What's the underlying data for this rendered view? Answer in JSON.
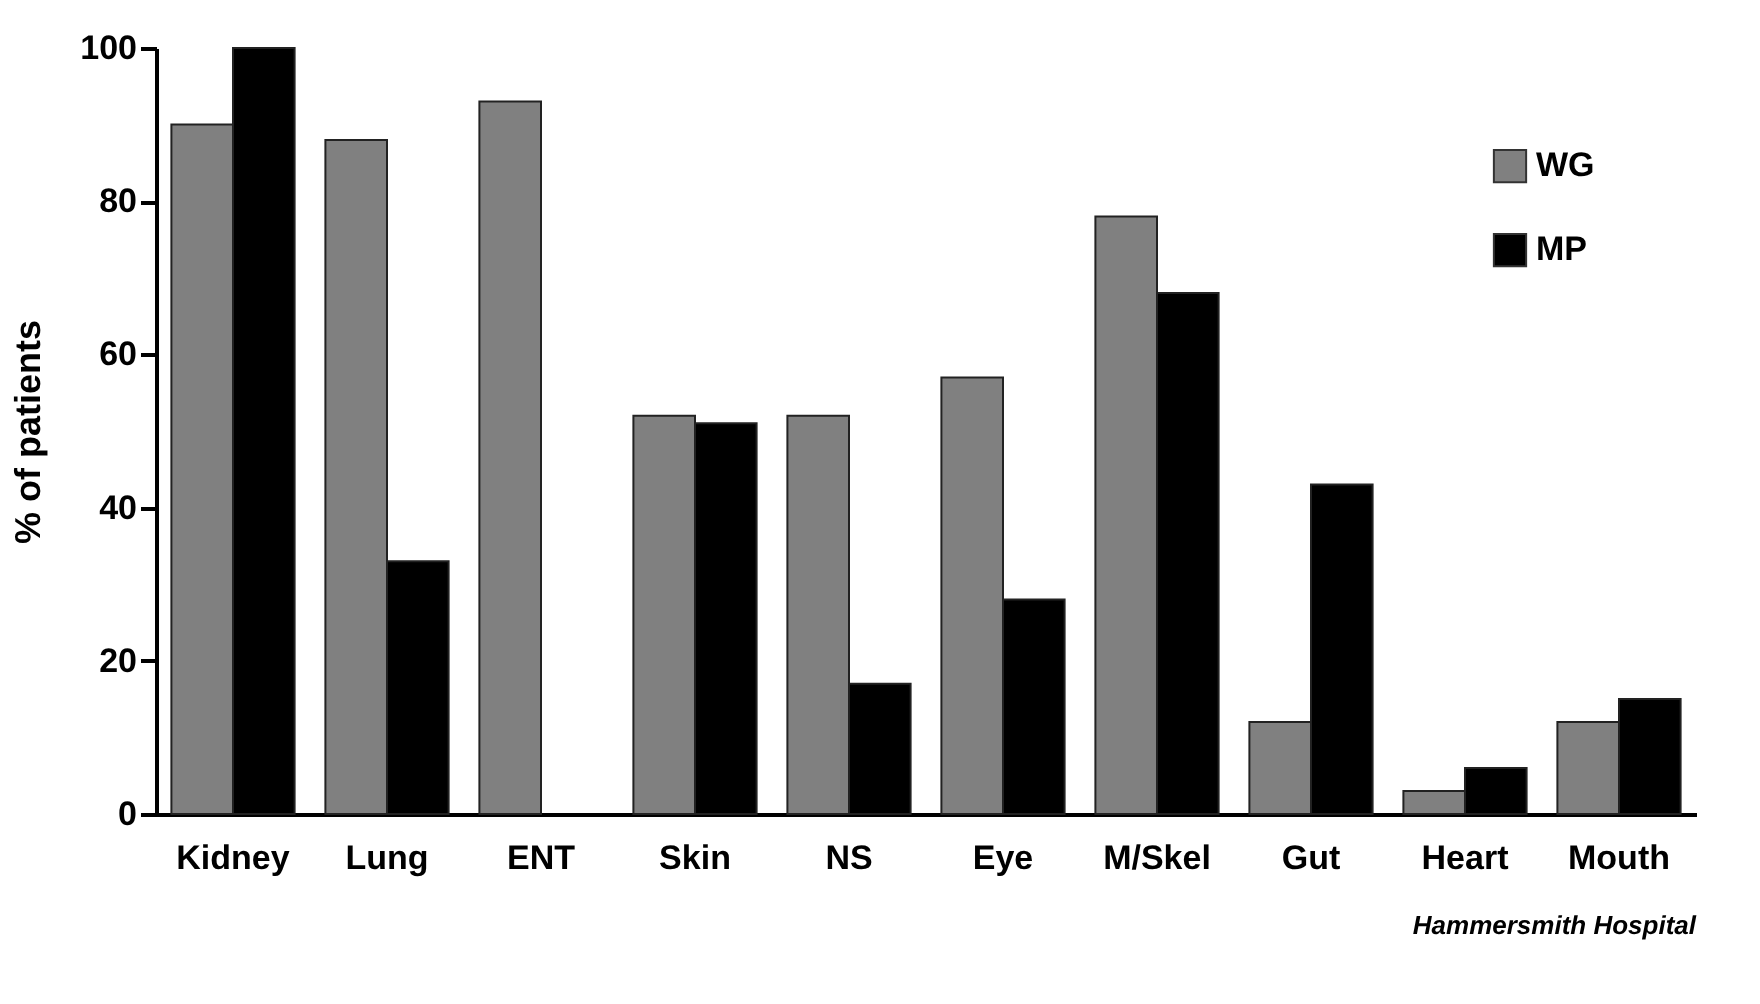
{
  "chart_data": {
    "type": "bar",
    "ylabel": "% of patients",
    "categories": [
      "Kidney",
      "Lung",
      "ENT",
      "Skin",
      "NS",
      "Eye",
      "M/Skel",
      "Gut",
      "Heart",
      "Mouth"
    ],
    "series": [
      {
        "name": "WG",
        "color": "#808080",
        "values": [
          90,
          88,
          93,
          52,
          52,
          57,
          78,
          12,
          3,
          12
        ]
      },
      {
        "name": "MP",
        "color": "#000000",
        "values": [
          100,
          33,
          null,
          51,
          17,
          28,
          68,
          43,
          6,
          15
        ]
      }
    ],
    "ylim": [
      0,
      100
    ],
    "yticks": [
      0,
      20,
      40,
      60,
      80,
      100
    ],
    "grid": false,
    "legend": "top right",
    "annotations": [
      "Hammersmith Hospital"
    ]
  }
}
